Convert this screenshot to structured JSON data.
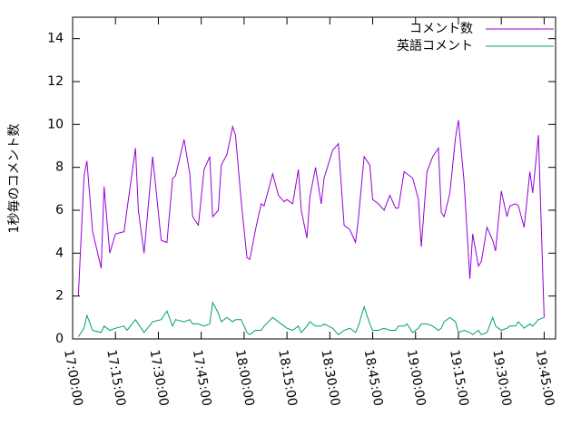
{
  "chart_data": {
    "type": "line",
    "y_label": "1秒毎のコメント数",
    "x": [
      "17:02:00",
      "17:04:00",
      "17:05:00",
      "17:07:00",
      "17:10:00",
      "17:11:00",
      "17:13:00",
      "17:15:00",
      "17:18:00",
      "17:19:00",
      "17:22:00",
      "17:23:00",
      "17:25:00",
      "17:28:00",
      "17:31:00",
      "17:33:00",
      "17:35:00",
      "17:36:00",
      "17:39:00",
      "17:41:00",
      "17:42:00",
      "17:44:00",
      "17:46:00",
      "17:48:00",
      "17:49:00",
      "17:51:00",
      "17:52:00",
      "17:54:00",
      "17:56:00",
      "17:57:00",
      "17:59:00",
      "18:01:00",
      "18:02:00",
      "18:04:00",
      "18:06:00",
      "18:07:00",
      "18:10:00",
      "18:12:00",
      "18:14:00",
      "18:15:00",
      "18:17:00",
      "18:19:00",
      "18:20:00",
      "18:22:00",
      "18:23:00",
      "18:25:00",
      "18:27:00",
      "18:28:00",
      "18:31:00",
      "18:33:00",
      "18:35:00",
      "18:37:00",
      "18:39:00",
      "18:40:00",
      "18:42:00",
      "18:44:00",
      "18:45:00",
      "18:47:00",
      "18:49:00",
      "18:51:00",
      "18:53:00",
      "18:54:00",
      "18:56:00",
      "18:57:00",
      "18:59:00",
      "19:01:00",
      "19:02:00",
      "19:04:00",
      "19:06:00",
      "19:08:00",
      "19:09:00",
      "19:10:00",
      "19:12:00",
      "19:14:00",
      "19:15:00",
      "19:17:00",
      "19:19:00",
      "19:20:00",
      "19:22:00",
      "19:23:00",
      "19:25:00",
      "19:27:00",
      "19:28:00",
      "19:30:00",
      "19:32:00",
      "19:33:00",
      "19:35:00",
      "19:36:00",
      "19:38:00",
      "19:40:00",
      "19:41:00",
      "19:43:00",
      "19:45:00"
    ],
    "series": [
      {
        "name": "コメント数",
        "color": "#9400d3",
        "values": [
          2.0,
          7.6,
          8.3,
          5.0,
          3.3,
          7.1,
          4.0,
          4.9,
          5.0,
          6.0,
          8.9,
          6.0,
          4.0,
          8.5,
          4.6,
          4.5,
          7.5,
          7.6,
          9.3,
          7.7,
          5.7,
          5.3,
          7.9,
          8.5,
          5.7,
          6.0,
          8.1,
          8.6,
          9.9,
          9.5,
          6.4,
          3.8,
          3.7,
          5.1,
          6.3,
          6.2,
          7.7,
          6.7,
          6.4,
          6.5,
          6.3,
          7.9,
          6.0,
          4.7,
          6.6,
          8.0,
          6.3,
          7.5,
          8.8,
          9.1,
          5.3,
          5.1,
          4.5,
          5.6,
          8.5,
          8.1,
          6.5,
          6.3,
          6.0,
          6.7,
          6.1,
          6.1,
          7.8,
          7.7,
          7.5,
          6.5,
          4.3,
          7.8,
          8.5,
          8.9,
          5.9,
          5.7,
          6.8,
          9.4,
          10.2,
          7.3,
          2.8,
          4.9,
          3.4,
          3.6,
          5.2,
          4.6,
          4.1,
          6.9,
          5.7,
          6.2,
          6.3,
          6.2,
          5.2,
          7.8,
          6.8,
          9.5,
          1.0
        ]
      },
      {
        "name": "英語コメント",
        "color": "#009e73",
        "values": [
          0.1,
          0.5,
          1.1,
          0.4,
          0.3,
          0.6,
          0.4,
          0.5,
          0.6,
          0.4,
          0.9,
          0.7,
          0.3,
          0.8,
          0.9,
          1.3,
          0.6,
          0.9,
          0.8,
          0.9,
          0.7,
          0.7,
          0.6,
          0.7,
          1.7,
          1.2,
          0.8,
          1.0,
          0.8,
          0.9,
          0.9,
          0.3,
          0.2,
          0.4,
          0.4,
          0.6,
          1.0,
          0.8,
          0.6,
          0.5,
          0.4,
          0.6,
          0.3,
          0.6,
          0.8,
          0.6,
          0.6,
          0.7,
          0.5,
          0.2,
          0.4,
          0.5,
          0.3,
          0.6,
          1.5,
          0.7,
          0.4,
          0.4,
          0.5,
          0.4,
          0.4,
          0.6,
          0.6,
          0.7,
          0.3,
          0.5,
          0.7,
          0.7,
          0.6,
          0.4,
          0.5,
          0.8,
          1.0,
          0.8,
          0.3,
          0.4,
          0.3,
          0.2,
          0.4,
          0.2,
          0.3,
          1.0,
          0.6,
          0.4,
          0.5,
          0.6,
          0.6,
          0.8,
          0.5,
          0.7,
          0.6,
          0.9,
          1.0
        ]
      }
    ],
    "xlim": [
      "17:00:00",
      "19:49:00"
    ],
    "xticks": [
      "17:00:00",
      "17:15:00",
      "17:30:00",
      "17:45:00",
      "18:00:00",
      "18:15:00",
      "18:30:00",
      "18:45:00",
      "19:00:00",
      "19:15:00",
      "19:30:00",
      "19:45:00"
    ],
    "ylim": [
      0,
      15
    ],
    "yticks": [
      0,
      2,
      4,
      6,
      8,
      10,
      12,
      14
    ],
    "legend": "top-right"
  }
}
